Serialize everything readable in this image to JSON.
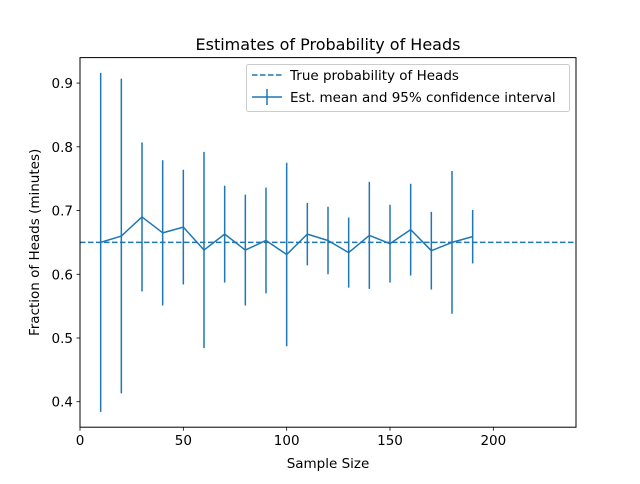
{
  "chart_data": {
    "type": "line",
    "title": "Estimates of Probability of Heads",
    "xlabel": "Sample Size",
    "ylabel": "Fraction of Heads (minutes)",
    "xlim": [
      0,
      240
    ],
    "ylim": [
      0.36,
      0.94
    ],
    "xticks": [
      0,
      50,
      100,
      150,
      200
    ],
    "xtick_labels": [
      "0",
      "50",
      "100",
      "150",
      "200"
    ],
    "yticks": [
      0.4,
      0.5,
      0.6,
      0.7,
      0.8,
      0.9
    ],
    "ytick_labels": [
      "0.4",
      "0.5",
      "0.6",
      "0.7",
      "0.8",
      "0.9"
    ],
    "grid": false,
    "legend_position": "top-right",
    "series": [
      {
        "name": "True probability of Heads",
        "style": "dashed-horizontal-line",
        "y": 0.65,
        "color": "#1f77b4"
      },
      {
        "name": "Est. mean and 95% confidence interval",
        "style": "line-with-errorbars",
        "color": "#1f77b4",
        "x": [
          10,
          20,
          30,
          40,
          50,
          60,
          70,
          80,
          90,
          100,
          110,
          120,
          130,
          140,
          150,
          160,
          170,
          180,
          190
        ],
        "mean": [
          0.65,
          0.66,
          0.69,
          0.665,
          0.674,
          0.638,
          0.663,
          0.638,
          0.653,
          0.631,
          0.663,
          0.653,
          0.634,
          0.661,
          0.648,
          0.67,
          0.637,
          0.65,
          0.659
        ],
        "lower": [
          0.384,
          0.413,
          0.573,
          0.551,
          0.584,
          0.484,
          0.587,
          0.551,
          0.57,
          0.487,
          0.614,
          0.6,
          0.579,
          0.577,
          0.587,
          0.598,
          0.576,
          0.538,
          0.617
        ],
        "upper": [
          0.916,
          0.907,
          0.807,
          0.779,
          0.764,
          0.792,
          0.739,
          0.725,
          0.736,
          0.775,
          0.712,
          0.706,
          0.689,
          0.745,
          0.709,
          0.742,
          0.698,
          0.762,
          0.701
        ]
      }
    ]
  }
}
